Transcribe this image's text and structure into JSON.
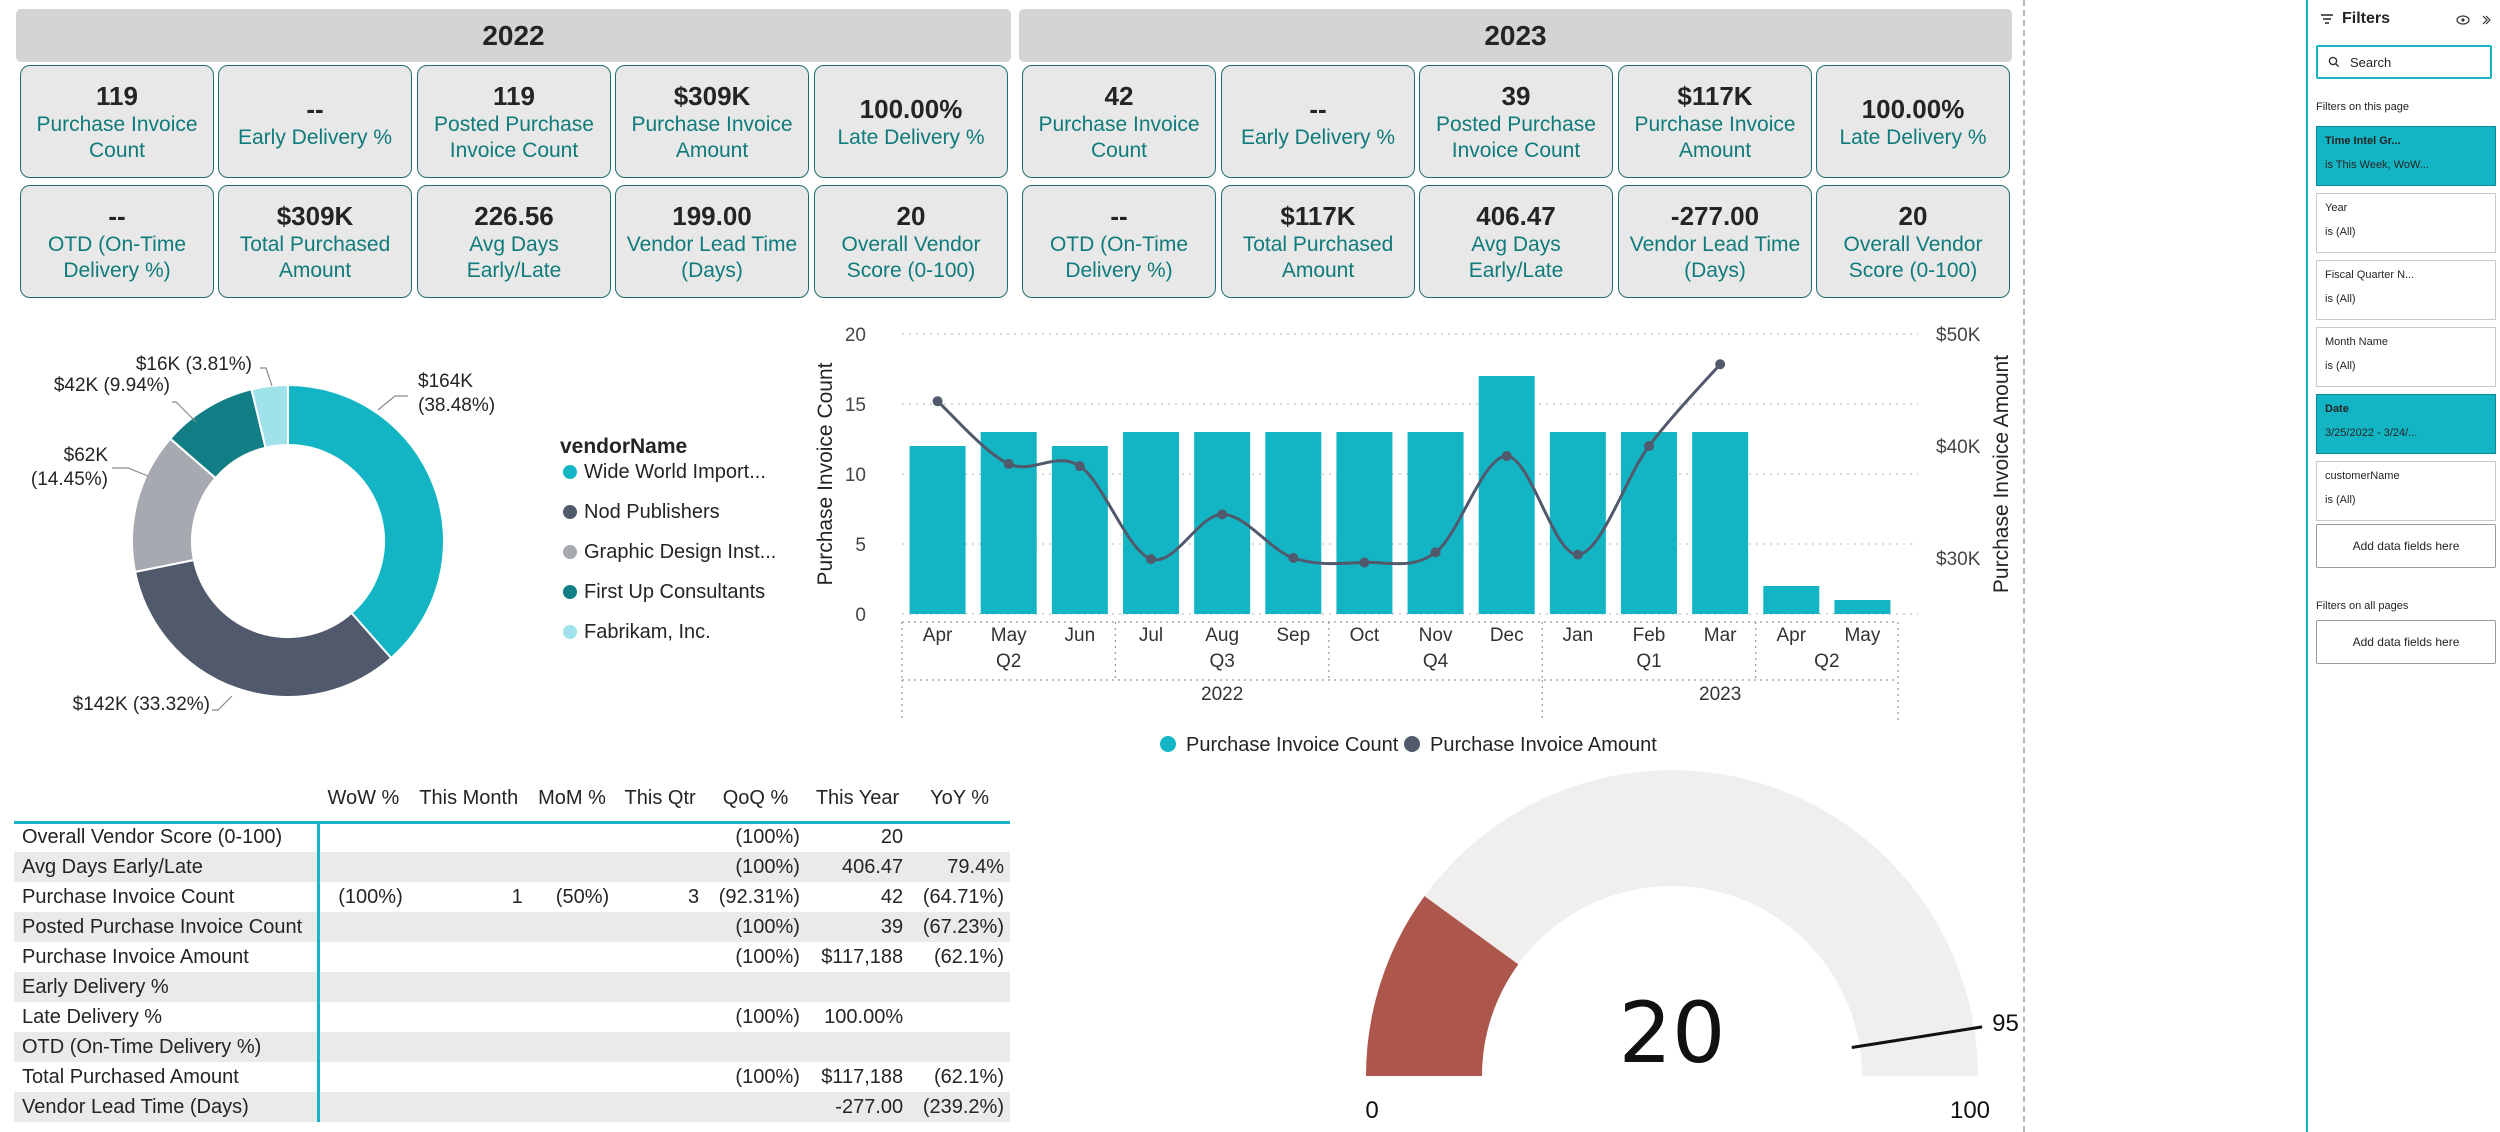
{
  "back_button": {
    "icon": "arrow-left-circle-icon"
  },
  "years": [
    {
      "label": "2022",
      "cards": [
        {
          "value": "119",
          "label": "Purchase Invoice Count"
        },
        {
          "value": "--",
          "label": "Early Delivery %"
        },
        {
          "value": "119",
          "label": "Posted Purchase Invoice Count"
        },
        {
          "value": "$309K",
          "label": "Purchase Invoice Amount"
        },
        {
          "value": "100.00%",
          "label": "Late Delivery %"
        },
        {
          "value": "--",
          "label": "OTD (On-Time Delivery %)"
        },
        {
          "value": "$309K",
          "label": "Total Purchased Amount"
        },
        {
          "value": "226.56",
          "label": "Avg Days Early/Late"
        },
        {
          "value": "199.00",
          "label": "Vendor Lead Time (Days)"
        },
        {
          "value": "20",
          "label": "Overall Vendor Score (0-100)"
        }
      ]
    },
    {
      "label": "2023",
      "cards": [
        {
          "value": "42",
          "label": "Purchase Invoice Count"
        },
        {
          "value": "--",
          "label": "Early Delivery %"
        },
        {
          "value": "39",
          "label": "Posted Purchase Invoice Count"
        },
        {
          "value": "$117K",
          "label": "Purchase Invoice Amount"
        },
        {
          "value": "100.00%",
          "label": "Late Delivery %"
        },
        {
          "value": "--",
          "label": "OTD (On-Time Delivery %)"
        },
        {
          "value": "$117K",
          "label": "Total Purchased Amount"
        },
        {
          "value": "406.47",
          "label": "Avg Days Early/Late"
        },
        {
          "value": "-277.00",
          "label": "Vendor Lead Time (Days)"
        },
        {
          "value": "20",
          "label": "Overall Vendor Score (0-100)"
        }
      ]
    }
  ],
  "chart_data": [
    {
      "type": "pie",
      "style": "donut",
      "legend_title": "vendorName",
      "legend_placement": "right",
      "slices": [
        {
          "name": "Wide World Import...",
          "value": 164,
          "label": "$164K (38.48%)",
          "color": "#13b5c4"
        },
        {
          "name": "Nod Publishers",
          "value": 142,
          "label": "$142K (33.32%)",
          "color": "#505a6c"
        },
        {
          "name": "Graphic Design Inst...",
          "value": 62,
          "label": "$62K (14.45%)",
          "color": "#a6aab0"
        },
        {
          "name": "First Up Consultants",
          "value": 42,
          "label": "$42K (9.94%)",
          "color": "#117d84"
        },
        {
          "name": "Fabrikam, Inc.",
          "value": 16,
          "label": "$16K (3.81%)",
          "color": "#9fe2ea"
        }
      ]
    },
    {
      "type": "bar",
      "combo": "bar-line",
      "categories": [
        "Apr",
        "May",
        "Jun",
        "Jul",
        "Aug",
        "Sep",
        "Oct",
        "Nov",
        "Dec",
        "Jan",
        "Feb",
        "Mar",
        "Apr",
        "May"
      ],
      "quarters": [
        {
          "label": "Q2",
          "span": 3
        },
        {
          "label": "Q3",
          "span": 3
        },
        {
          "label": "Q4",
          "span": 3
        },
        {
          "label": "Q1",
          "span": 3
        },
        {
          "label": "Q2",
          "span": 2
        }
      ],
      "year_groups": [
        {
          "label": "2022",
          "span": 9
        },
        {
          "label": "2023",
          "span": 5
        }
      ],
      "series": [
        {
          "name": "Purchase Invoice Count",
          "axis": "left",
          "render": "bar",
          "color": "#13b5c4",
          "values": [
            12,
            13,
            12,
            13,
            13,
            13,
            13,
            13,
            17,
            13,
            13,
            13,
            2,
            1
          ]
        },
        {
          "name": "Purchase Invoice Amount",
          "axis": "right",
          "render": "line",
          "color": "#505a6c",
          "values": [
            44000,
            38400,
            38200,
            29900,
            33900,
            30000,
            29600,
            30500,
            39100,
            30300,
            40000,
            47300,
            null,
            null
          ]
        }
      ],
      "ylabel": "Purchase Invoice Count",
      "ylabel_right": "Purchase Invoice Amount",
      "ylim": [
        0,
        20
      ],
      "y_ticks": [
        "0",
        "5",
        "10",
        "15",
        "20"
      ],
      "ylim_right": [
        25000,
        50000
      ],
      "y_right_ticks": [
        "$30K",
        "$40K",
        "$50K"
      ],
      "grid": true,
      "legend_placement": "bottom"
    },
    {
      "type": "gauge",
      "value": 20,
      "display_value": "20",
      "min": 0,
      "max": 100,
      "target": 95,
      "min_label": "0",
      "max_label": "100",
      "target_label": "95",
      "fill_color": "#ad574c",
      "track_color": "#f0efee"
    }
  ],
  "matrix": {
    "columns": [
      "WoW %",
      "This Month",
      "MoM %",
      "This Qtr",
      "QoQ %",
      "This Year",
      "YoY %"
    ],
    "rows": [
      {
        "label": "Overall Vendor Score (0-100)",
        "cells": [
          "",
          "",
          "",
          "",
          "(100%)",
          "20",
          ""
        ]
      },
      {
        "label": "Avg Days Early/Late",
        "cells": [
          "",
          "",
          "",
          "",
          "(100%)",
          "406.47",
          "79.4%"
        ]
      },
      {
        "label": "Purchase Invoice Count",
        "cells": [
          "(100%)",
          "1",
          "(50%)",
          "3",
          "(92.31%)",
          "42",
          "(64.71%)"
        ]
      },
      {
        "label": "Posted Purchase Invoice Count",
        "cells": [
          "",
          "",
          "",
          "",
          "(100%)",
          "39",
          "(67.23%)"
        ]
      },
      {
        "label": "Purchase Invoice Amount",
        "cells": [
          "",
          "",
          "",
          "",
          "(100%)",
          "$117,188",
          "(62.1%)"
        ]
      },
      {
        "label": "Early Delivery %",
        "cells": [
          "",
          "",
          "",
          "",
          "",
          "",
          ""
        ]
      },
      {
        "label": "Late Delivery %",
        "cells": [
          "",
          "",
          "",
          "",
          "(100%)",
          "100.00%",
          ""
        ]
      },
      {
        "label": "OTD (On-Time Delivery %)",
        "cells": [
          "",
          "",
          "",
          "",
          "",
          "",
          ""
        ]
      },
      {
        "label": "Total Purchased Amount",
        "cells": [
          "",
          "",
          "",
          "",
          "(100%)",
          "$117,188",
          "(62.1%)"
        ]
      },
      {
        "label": "Vendor Lead Time (Days)",
        "cells": [
          "",
          "",
          "",
          "",
          "",
          "-277.00",
          "(239.2%)"
        ]
      }
    ]
  },
  "filters": {
    "title": "Filters",
    "search_placeholder": "Search",
    "section_page": "Filters on this page",
    "section_all": "Filters on all pages",
    "more": "...",
    "cards": [
      {
        "name": "Time Intel Gr...",
        "value": "is This Week, WoW...",
        "active": true
      },
      {
        "name": "Year",
        "value": "is (All)",
        "active": false
      },
      {
        "name": "Fiscal Quarter N...",
        "value": "is (All)",
        "active": false
      },
      {
        "name": "Month Name",
        "value": "is (All)",
        "active": false
      },
      {
        "name": "Date",
        "value": "3/25/2022 - 3/24/...",
        "active": true
      },
      {
        "name": "customerName",
        "value": "is (All)",
        "active": false
      }
    ],
    "add_label": "Add data fields here"
  }
}
